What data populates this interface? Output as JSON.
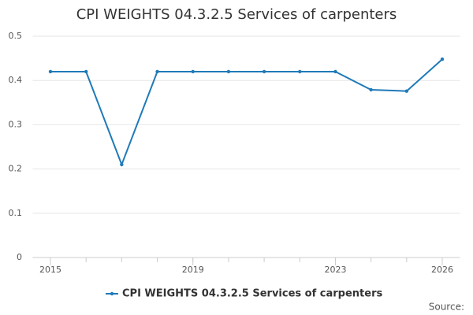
{
  "chart_data": {
    "type": "line",
    "title": "CPI WEIGHTS 04.3.2.5 Services of carpenters",
    "x": [
      2015,
      2016,
      2017,
      2018,
      2019,
      2020,
      2021,
      2022,
      2023,
      2024,
      2025,
      2026
    ],
    "series": [
      {
        "name": "CPI WEIGHTS 04.3.2.5 Services of carpenters",
        "color": "#1f7ab8",
        "values": [
          0.42,
          0.42,
          0.21,
          0.42,
          0.42,
          0.42,
          0.42,
          0.42,
          0.42,
          0.379,
          0.376,
          0.448
        ]
      }
    ],
    "xlim": [
      2014.5,
      2026.5
    ],
    "xticks": [
      2015,
      2019,
      2023,
      2026
    ],
    "ylim": [
      0,
      0.5
    ],
    "yticks": [
      0,
      0.1,
      0.2,
      0.3,
      0.4,
      0.5
    ],
    "grid": true,
    "legend": "bottom",
    "source": "Source:"
  }
}
